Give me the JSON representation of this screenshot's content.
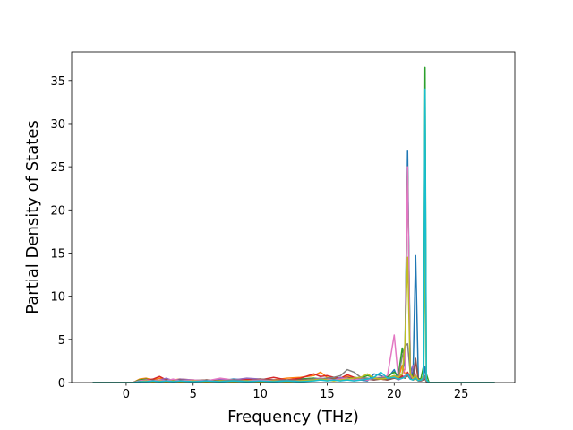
{
  "chart_data": {
    "type": "line",
    "x_label": "Frequency (THz)",
    "y_label": "Partial Density of States",
    "x": [
      -2.5,
      0,
      0.5,
      1,
      1.5,
      2,
      2.5,
      3,
      3.5,
      4,
      5,
      6,
      7,
      8,
      9,
      10,
      11,
      12,
      13,
      14,
      14.5,
      15,
      15.5,
      16,
      16.5,
      17,
      17.5,
      18,
      18.5,
      19,
      19.5,
      20,
      20.3,
      20.6,
      20.8,
      21.0,
      21.2,
      21.4,
      21.6,
      21.8,
      22.0,
      22.2,
      22.3,
      22.4,
      22.6,
      23,
      24,
      27.5
    ],
    "series": [
      {
        "color": "#1f77b4",
        "values": [
          0,
          0,
          0,
          0.3,
          0.2,
          0.3,
          0.2,
          0.3,
          0.2,
          0.3,
          0.2,
          0.3,
          0.2,
          0.4,
          0.3,
          0.3,
          0.2,
          0.3,
          0.4,
          0.5,
          0.4,
          0.5,
          0.4,
          0.3,
          0.5,
          0.4,
          0.3,
          0.2,
          1.0,
          0.8,
          0.5,
          1.5,
          0.3,
          1.0,
          3,
          26.8,
          2,
          0.5,
          14.7,
          0.5,
          0.3,
          0.8,
          1.8,
          0.3,
          0,
          0,
          0,
          0
        ]
      },
      {
        "color": "#ff7f0e",
        "values": [
          0,
          0,
          0,
          0.4,
          0.5,
          0.3,
          0.5,
          0.4,
          0.3,
          0.4,
          0.3,
          0.2,
          0.4,
          0.3,
          0.4,
          0.2,
          0.3,
          0.5,
          0.6,
          0.8,
          1.2,
          0.6,
          0.5,
          0.4,
          0.7,
          0.5,
          0.6,
          0.4,
          0.5,
          0.6,
          0.4,
          0.8,
          0.5,
          2.0,
          1.0,
          1.0,
          0.5,
          0.3,
          0.4,
          0.2,
          0.2,
          0.3,
          0.5,
          0.2,
          0,
          0,
          0,
          0
        ]
      },
      {
        "color": "#2ca02c",
        "values": [
          0,
          0,
          0,
          0.3,
          0.4,
          0.2,
          0.3,
          0.2,
          0.3,
          0.2,
          0.3,
          0.2,
          0.3,
          0.2,
          0.3,
          0.4,
          0.2,
          0.3,
          0.4,
          0.5,
          0.4,
          0.5,
          0.6,
          0.5,
          0.4,
          0.6,
          0.5,
          0.8,
          0.6,
          0.5,
          0.7,
          1.2,
          0.8,
          4.0,
          2,
          25,
          1.5,
          0.5,
          0.8,
          0.3,
          0.5,
          2,
          36.5,
          1,
          0,
          0,
          0,
          0
        ]
      },
      {
        "color": "#d62728",
        "values": [
          0,
          0,
          0,
          0.2,
          0.3,
          0.4,
          0.7,
          0.3,
          0.2,
          0.3,
          0.2,
          0.3,
          0.2,
          0.3,
          0.4,
          0.3,
          0.6,
          0.3,
          0.5,
          1.0,
          0.7,
          0.8,
          0.6,
          0.5,
          0.9,
          0.6,
          0.4,
          0.3,
          0.5,
          0.4,
          0.3,
          0.6,
          0.4,
          0.8,
          0.5,
          1.2,
          0.6,
          0.3,
          2.5,
          0.2,
          0.2,
          0.3,
          0.6,
          0.2,
          0,
          0,
          0,
          0
        ]
      },
      {
        "color": "#9467bd",
        "values": [
          0,
          0,
          0,
          0.2,
          0.3,
          0.2,
          0.3,
          0.5,
          0.2,
          0.4,
          0.3,
          0.2,
          0.4,
          0.3,
          0.5,
          0.4,
          0.3,
          0.2,
          0.3,
          0.4,
          0.5,
          0.4,
          0.3,
          0.6,
          0.4,
          0.5,
          0.3,
          0.4,
          0.3,
          0.5,
          0.4,
          0.6,
          0.3,
          0.5,
          0.8,
          0.9,
          0.6,
          2.0,
          0.8,
          0.3,
          0.2,
          0.4,
          0.5,
          0.2,
          0,
          0,
          0,
          0
        ]
      },
      {
        "color": "#8c564b",
        "values": [
          0,
          0,
          0,
          0.1,
          0.2,
          0.3,
          0.2,
          0.3,
          0.2,
          0.3,
          0.2,
          0.3,
          0.2,
          0.3,
          0.2,
          0.4,
          0.3,
          0.2,
          0.3,
          0.4,
          0.3,
          0.5,
          0.4,
          0.3,
          0.6,
          0.4,
          0.3,
          0.4,
          0.3,
          0.4,
          0.3,
          0.5,
          0.4,
          0.6,
          0.5,
          0.8,
          0.4,
          0.5,
          2.8,
          0.3,
          0.2,
          0.3,
          0.4,
          0.1,
          0,
          0,
          0,
          0
        ]
      },
      {
        "color": "#e377c2",
        "values": [
          0,
          0,
          0,
          0.2,
          0.3,
          0.2,
          0.3,
          0.2,
          0.4,
          0.2,
          0.3,
          0.2,
          0.5,
          0.3,
          0.2,
          0.3,
          0.2,
          0.3,
          0.2,
          0.4,
          0.3,
          0.4,
          0.3,
          0.4,
          0.5,
          0.3,
          0.4,
          0.3,
          0.5,
          0.6,
          0.8,
          5.5,
          0.6,
          1.0,
          1.5,
          25,
          1.0,
          0.4,
          0.8,
          0.3,
          0.2,
          0.5,
          0.8,
          0.2,
          0,
          0,
          0,
          0
        ]
      },
      {
        "color": "#7f7f7f",
        "values": [
          0,
          0,
          0,
          0.1,
          0.2,
          0.1,
          0.2,
          0.1,
          0.2,
          0.1,
          0.2,
          0.1,
          0.2,
          0.3,
          0.2,
          0.1,
          0.2,
          0.3,
          0.2,
          0.4,
          0.3,
          0.5,
          0.6,
          0.8,
          1.5,
          1.2,
          0.6,
          0.5,
          0.4,
          0.6,
          0.5,
          0.8,
          0.6,
          3.0,
          4.2,
          4.5,
          1.0,
          0.5,
          0.6,
          0.3,
          0.2,
          0.4,
          0.8,
          0.2,
          0,
          0,
          0,
          0
        ]
      },
      {
        "color": "#bcbd22",
        "values": [
          0,
          0,
          0,
          0.1,
          0.2,
          0.1,
          0.2,
          0.1,
          0.2,
          0.1,
          0.2,
          0.1,
          0.2,
          0.1,
          0.2,
          0.1,
          0.2,
          0.1,
          0.2,
          0.3,
          0.4,
          0.3,
          0.2,
          0.3,
          0.4,
          0.5,
          0.6,
          1.0,
          0.5,
          0.4,
          0.5,
          0.8,
          0.6,
          1.0,
          4.5,
          14.5,
          1.0,
          0.5,
          0.8,
          0.3,
          0.3,
          0.8,
          17,
          0.3,
          0,
          0,
          0,
          0
        ]
      },
      {
        "color": "#17becf",
        "values": [
          0,
          0,
          0,
          0.1,
          0.1,
          0.2,
          0.1,
          0.2,
          0.1,
          0.2,
          0.1,
          0.2,
          0.1,
          0.2,
          0.1,
          0.2,
          0.1,
          0.2,
          0.1,
          0.2,
          0.3,
          0.2,
          0.3,
          0.2,
          0.3,
          0.2,
          0.3,
          0.4,
          0.6,
          1.2,
          0.5,
          0.6,
          0.4,
          0.5,
          0.6,
          1.0,
          0.4,
          0.3,
          0.5,
          0.2,
          0.3,
          0.6,
          34,
          0.3,
          0,
          0,
          0,
          0
        ]
      }
    ],
    "xlim": [
      -4.07,
      29.0
    ],
    "ylim": [
      0,
      38.3
    ],
    "xticks": [
      0,
      5,
      10,
      15,
      20,
      25
    ],
    "yticks": [
      0,
      5,
      10,
      15,
      20,
      25,
      30,
      35
    ]
  }
}
